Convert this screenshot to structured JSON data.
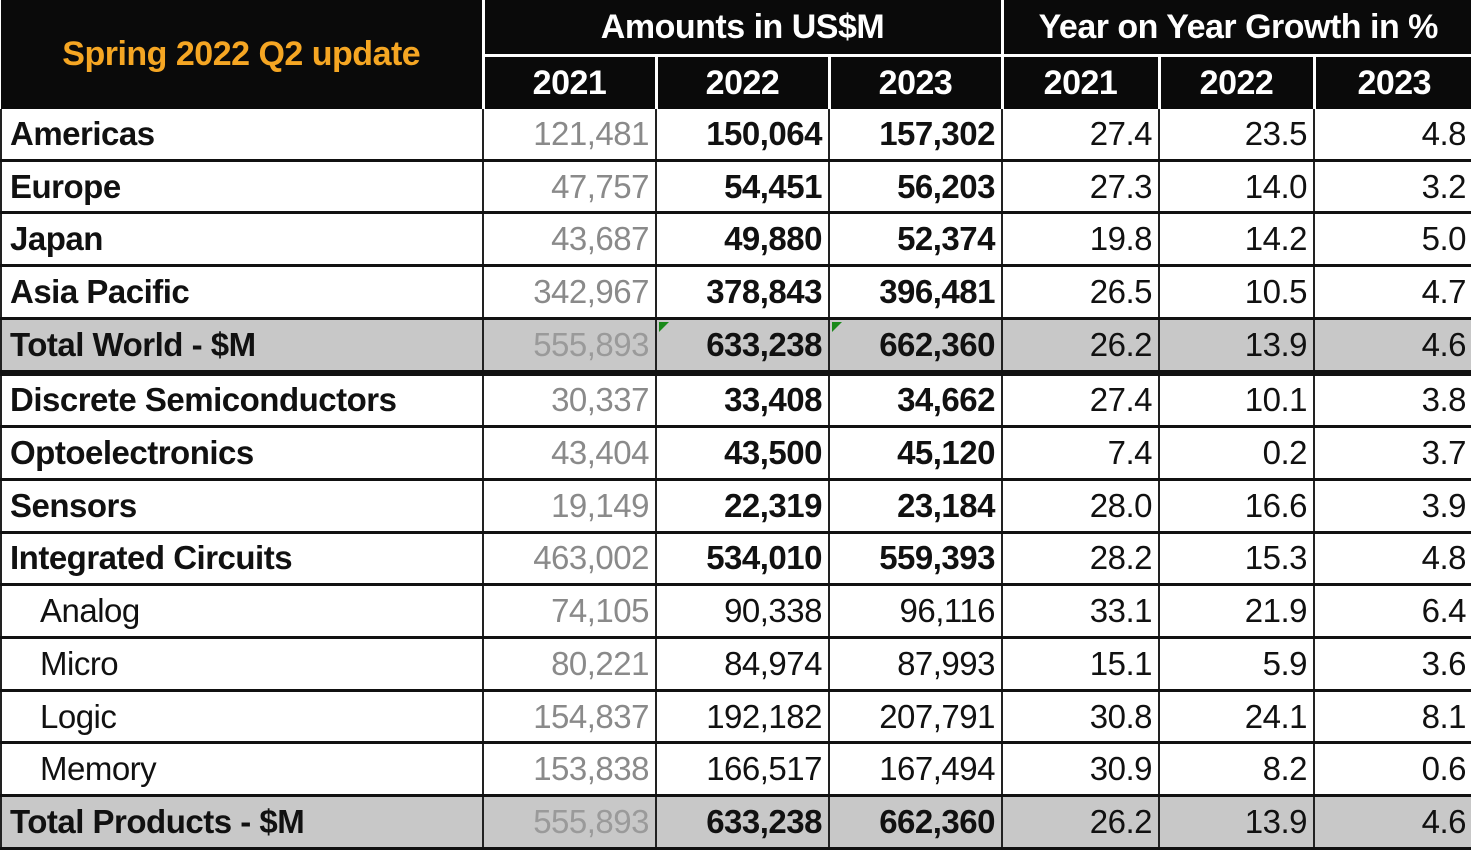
{
  "chart_data": {
    "type": "table",
    "title": "Spring 2022 Q2 update",
    "column_groups": [
      {
        "label": "Amounts in US$M",
        "years": [
          "2021",
          "2022",
          "2023"
        ]
      },
      {
        "label": "Year on Year Growth in %",
        "years": [
          "2021",
          "2022",
          "2023"
        ]
      }
    ],
    "rows": [
      {
        "label": "Americas",
        "indent": false,
        "total": false,
        "amounts": [
          "121,481",
          "150,064",
          "157,302"
        ],
        "growth": [
          "27.4",
          "23.5",
          "4.8"
        ]
      },
      {
        "label": "Europe",
        "indent": false,
        "total": false,
        "amounts": [
          "47,757",
          "54,451",
          "56,203"
        ],
        "growth": [
          "27.3",
          "14.0",
          "3.2"
        ]
      },
      {
        "label": "Japan",
        "indent": false,
        "total": false,
        "amounts": [
          "43,687",
          "49,880",
          "52,374"
        ],
        "growth": [
          "19.8",
          "14.2",
          "5.0"
        ]
      },
      {
        "label": "Asia Pacific",
        "indent": false,
        "total": false,
        "amounts": [
          "342,967",
          "378,843",
          "396,481"
        ],
        "growth": [
          "26.5",
          "10.5",
          "4.7"
        ]
      },
      {
        "label": "Total World - $M",
        "indent": false,
        "total": true,
        "amounts": [
          "555,893",
          "633,238",
          "662,360"
        ],
        "growth": [
          "26.2",
          "13.9",
          "4.6"
        ]
      },
      {
        "label": "Discrete Semiconductors",
        "indent": false,
        "total": false,
        "amounts": [
          "30,337",
          "33,408",
          "34,662"
        ],
        "growth": [
          "27.4",
          "10.1",
          "3.8"
        ]
      },
      {
        "label": "Optoelectronics",
        "indent": false,
        "total": false,
        "amounts": [
          "43,404",
          "43,500",
          "45,120"
        ],
        "growth": [
          "7.4",
          "0.2",
          "3.7"
        ]
      },
      {
        "label": "Sensors",
        "indent": false,
        "total": false,
        "amounts": [
          "19,149",
          "22,319",
          "23,184"
        ],
        "growth": [
          "28.0",
          "16.6",
          "3.9"
        ]
      },
      {
        "label": "Integrated Circuits",
        "indent": false,
        "total": false,
        "amounts": [
          "463,002",
          "534,010",
          "559,393"
        ],
        "growth": [
          "28.2",
          "15.3",
          "4.8"
        ]
      },
      {
        "label": "Analog",
        "indent": true,
        "total": false,
        "amounts": [
          "74,105",
          "90,338",
          "96,116"
        ],
        "growth": [
          "33.1",
          "21.9",
          "6.4"
        ]
      },
      {
        "label": "Micro",
        "indent": true,
        "total": false,
        "amounts": [
          "80,221",
          "84,974",
          "87,993"
        ],
        "growth": [
          "15.1",
          "5.9",
          "3.6"
        ]
      },
      {
        "label": "Logic",
        "indent": true,
        "total": false,
        "amounts": [
          "154,837",
          "192,182",
          "207,791"
        ],
        "growth": [
          "30.8",
          "24.1",
          "8.1"
        ]
      },
      {
        "label": "Memory",
        "indent": true,
        "total": false,
        "amounts": [
          "153,838",
          "166,517",
          "167,494"
        ],
        "growth": [
          "30.9",
          "8.2",
          "0.6"
        ]
      },
      {
        "label": "Total Products - $M",
        "indent": false,
        "total": true,
        "amounts": [
          "555,893",
          "633,238",
          "662,360"
        ],
        "growth": [
          "26.2",
          "13.9",
          "4.6"
        ]
      }
    ]
  },
  "colors": {
    "header_bg": "#0a0a0a",
    "header_text": "#ffffff",
    "title_text": "#f5a623",
    "total_row_bg": "#c8c8c8",
    "muted_2021": "#8a8a8a",
    "cell_marker": "#1a8a1a"
  }
}
